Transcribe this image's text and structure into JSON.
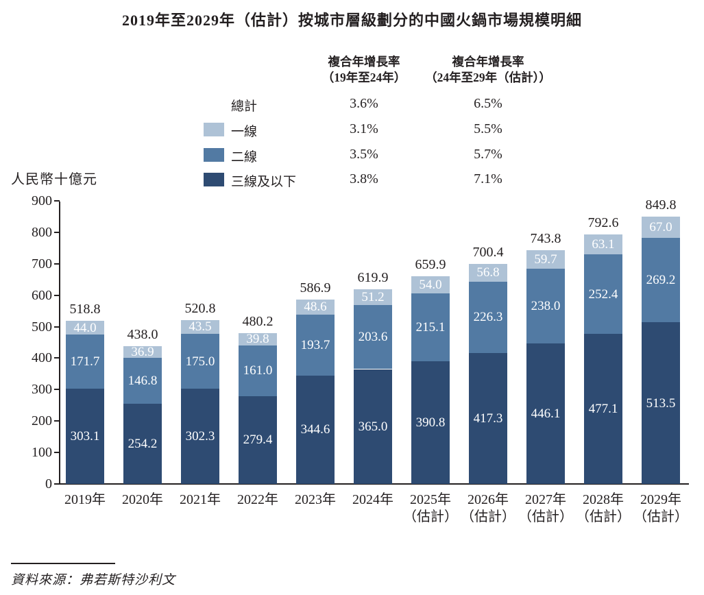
{
  "title": "2019年至2029年（估計）按城市層級劃分的中國火鍋市場規模明細",
  "unit_label": "人民幣十億元",
  "source": "資料來源：弗若斯特沙利文",
  "cagr_table": {
    "col1_header_line1": "複合年增長率",
    "col1_header_line2": "（19年至24年）",
    "col2_header_line1": "複合年增長率",
    "col2_header_line2": "（24年至29年（估計））",
    "rows": [
      {
        "label": "總計",
        "swatch": "",
        "v1": "3.6%",
        "v2": "6.5%"
      },
      {
        "label": "一線",
        "swatch": "#aec2d6",
        "v1": "3.1%",
        "v2": "5.5%"
      },
      {
        "label": "二線",
        "swatch": "#527aa3",
        "v1": "3.5%",
        "v2": "5.7%"
      },
      {
        "label": "三線及以下",
        "swatch": "#2e4b72",
        "v1": "3.8%",
        "v2": "7.1%"
      }
    ]
  },
  "chart_data": {
    "type": "bar",
    "stacked": true,
    "title": "2019年至2029年（估計）按城市層級劃分的中國火鍋市場規模明細",
    "ylabel": "人民幣十億元",
    "ylim": [
      0,
      900
    ],
    "ytick_step": 100,
    "grid": false,
    "legend_position": "top",
    "categories": [
      "2019年",
      "2020年",
      "2021年",
      "2022年",
      "2023年",
      "2024年",
      "2025年",
      "2026年",
      "2027年",
      "2028年",
      "2029年"
    ],
    "category_notes": [
      "",
      "",
      "",
      "",
      "",
      "",
      "（估計）",
      "（估計）",
      "（估計）",
      "（估計）",
      "（估計）"
    ],
    "series": [
      {
        "name": "三線及以下",
        "color": "#2e4b72",
        "values": [
          303.1,
          254.2,
          302.3,
          279.4,
          344.6,
          365.0,
          390.8,
          417.3,
          446.1,
          477.1,
          513.5
        ]
      },
      {
        "name": "二線",
        "color": "#527aa3",
        "values": [
          171.7,
          146.8,
          175.0,
          161.0,
          193.7,
          203.6,
          215.1,
          226.3,
          238.0,
          252.4,
          269.2
        ]
      },
      {
        "name": "一線",
        "color": "#aec2d6",
        "values": [
          44.0,
          36.9,
          43.5,
          39.8,
          48.6,
          51.2,
          54.0,
          56.8,
          59.7,
          63.1,
          67.0
        ]
      }
    ],
    "totals": [
      518.8,
      438.0,
      520.8,
      480.2,
      586.9,
      619.9,
      659.9,
      700.4,
      743.8,
      792.6,
      849.8
    ]
  }
}
